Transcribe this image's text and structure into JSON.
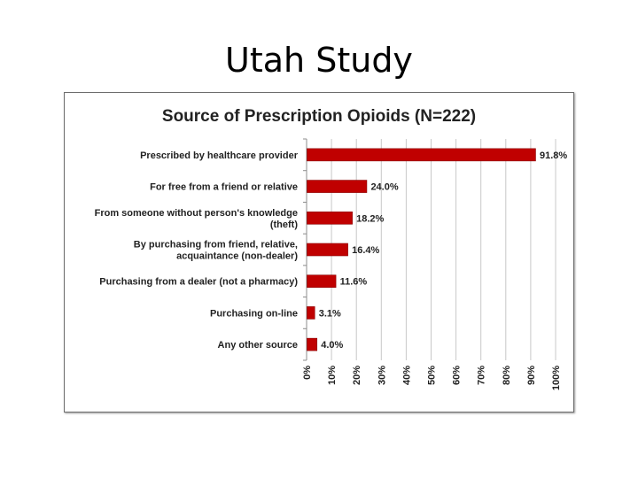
{
  "slide": {
    "title": "Utah Study"
  },
  "colors": {
    "bar": "#c00000",
    "bar_edge": "#8a0000",
    "grid": "#c8c8c8",
    "axis": "#8c8c8c",
    "text": "#222222"
  },
  "chart_data": {
    "type": "bar",
    "orientation": "horizontal",
    "title": "Source of Prescription Opioids (N=222)",
    "categories": [
      [
        "Prescribed by healthcare provider"
      ],
      [
        "For free from a friend or relative"
      ],
      [
        "From someone without person's knowledge",
        "(theft)"
      ],
      [
        "By purchasing from friend, relative,",
        "acquaintance (non-dealer)"
      ],
      [
        "Purchasing from a dealer (not a pharmacy)"
      ],
      [
        "Purchasing on-line"
      ],
      [
        "Any other source"
      ]
    ],
    "values": [
      91.8,
      24.0,
      18.2,
      16.4,
      11.6,
      3.1,
      4.0
    ],
    "data_labels": [
      "91.8%",
      "24.0%",
      "18.2%",
      "16.4%",
      "11.6%",
      "3.1%",
      "4.0%"
    ],
    "xlim": [
      0,
      100
    ],
    "xticks": [
      "0%",
      "10%",
      "20%",
      "30%",
      "40%",
      "50%",
      "60%",
      "70%",
      "80%",
      "90%",
      "100%"
    ],
    "xlabel": "",
    "ylabel": "",
    "grid": "vertical",
    "legend": "none"
  }
}
